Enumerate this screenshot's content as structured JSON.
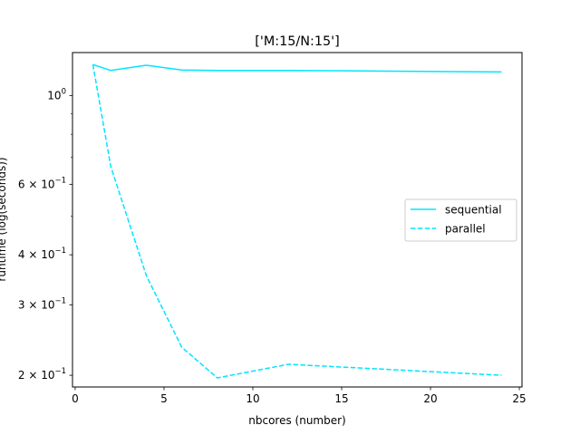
{
  "chart_data": {
    "type": "line",
    "title": "['M:15/N:15']",
    "xlabel": "nbcores (number)",
    "ylabel": "runtime (log(seconds))",
    "xlim": [
      -0.15,
      25.15
    ],
    "ylim": [
      0.187,
      1.28
    ],
    "yscale": "log",
    "x_ticks": [
      0,
      5,
      10,
      15,
      20,
      25
    ],
    "y_ticks": [
      {
        "value": 0.2,
        "base": "2",
        "exp": "−1"
      },
      {
        "value": 0.3,
        "base": "3",
        "exp": "−1"
      },
      {
        "value": 0.4,
        "base": "4",
        "exp": "−1"
      },
      {
        "value": 0.6,
        "base": "6",
        "exp": "−1"
      },
      {
        "value": 1.0,
        "base": "",
        "exp": "0"
      }
    ],
    "series": [
      {
        "name": "sequential",
        "color": "#00e5ff",
        "dash": "solid",
        "x": [
          1,
          2,
          4,
          6,
          8,
          12,
          24
        ],
        "y": [
          1.195,
          1.155,
          1.19,
          1.158,
          1.155,
          1.155,
          1.145
        ]
      },
      {
        "name": "parallel",
        "color": "#00e5ff",
        "dash": "dashed",
        "x": [
          1,
          2,
          4,
          6,
          8,
          12,
          24
        ],
        "y": [
          1.195,
          0.665,
          0.355,
          0.235,
          0.197,
          0.213,
          0.2
        ]
      }
    ],
    "legend": "center-right",
    "grid": false
  }
}
